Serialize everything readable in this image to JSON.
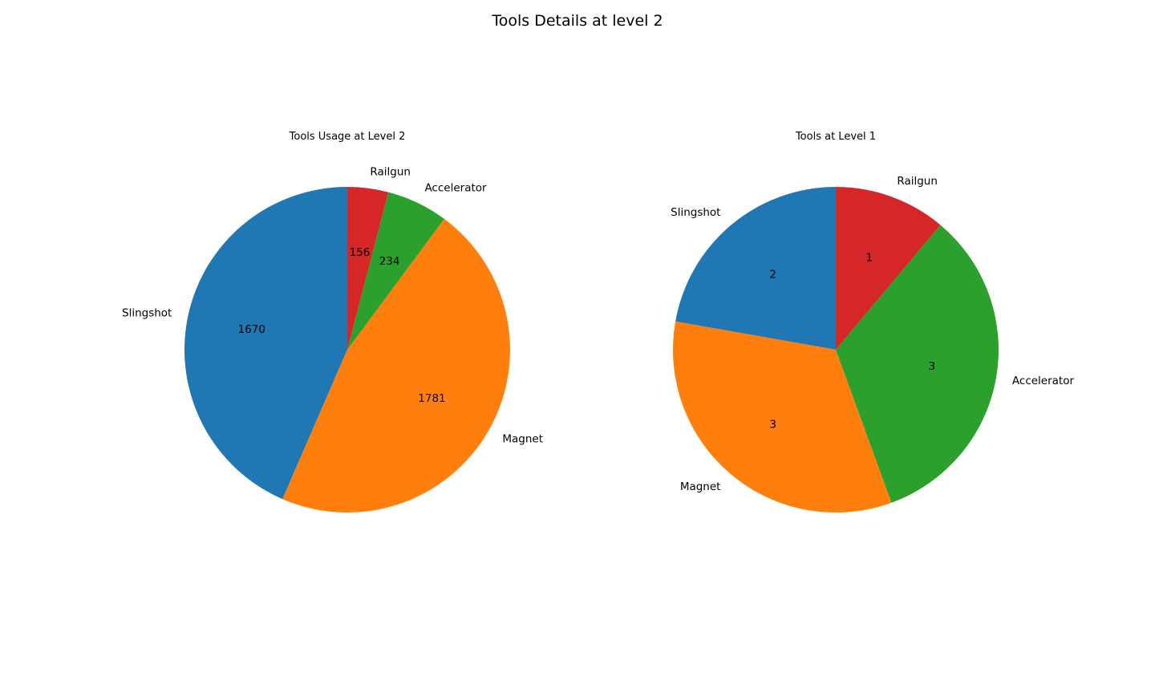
{
  "figure": {
    "suptitle": "Tools Details at level 2"
  },
  "chart_data": [
    {
      "type": "pie",
      "title": "Tools Usage at Level 2",
      "categories": [
        "Slingshot",
        "Magnet",
        "Accelerator",
        "Railgun"
      ],
      "values": [
        1670,
        1781,
        234,
        156
      ],
      "value_labels": [
        "1670",
        "1781",
        "234",
        "156"
      ],
      "colors": [
        "#1f77b4",
        "#ff7f0e",
        "#2ca02c",
        "#d62728"
      ],
      "start_angle_deg": 90,
      "direction": "counterclockwise"
    },
    {
      "type": "pie",
      "title": "Tools at Level 1",
      "categories": [
        "Slingshot",
        "Magnet",
        "Accelerator",
        "Railgun"
      ],
      "values": [
        2,
        3,
        3,
        1
      ],
      "value_labels": [
        "2",
        "3",
        "3",
        "1"
      ],
      "colors": [
        "#1f77b4",
        "#ff7f0e",
        "#2ca02c",
        "#d62728"
      ],
      "start_angle_deg": 90,
      "direction": "counterclockwise"
    }
  ]
}
